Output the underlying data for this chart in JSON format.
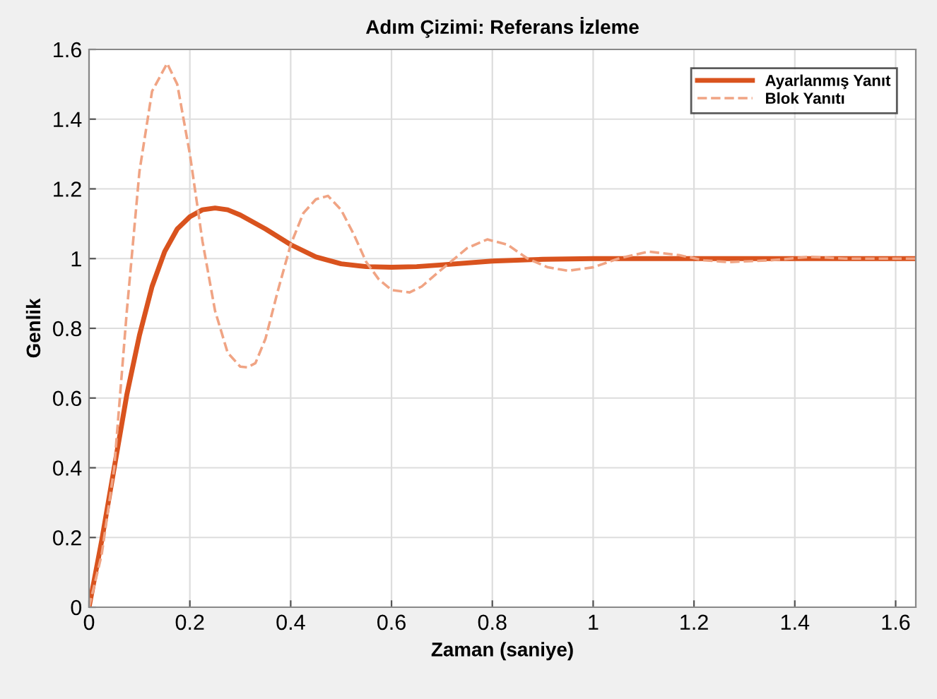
{
  "chart_data": {
    "type": "line",
    "title": "Adım Çizimi: Referans İzleme",
    "xlabel": "Zaman (saniye)",
    "ylabel": "Genlik",
    "xlim": [
      0,
      1.64
    ],
    "ylim": [
      0,
      1.6
    ],
    "xticks": [
      0,
      0.2,
      0.4,
      0.6,
      0.8,
      1,
      1.2,
      1.4,
      1.6
    ],
    "yticks": [
      0,
      0.2,
      0.4,
      0.6,
      0.8,
      1,
      1.2,
      1.4,
      1.6
    ],
    "grid": true,
    "legend": "top right",
    "series": [
      {
        "name": "Ayarlanmış Yanıt",
        "color": "#d9531e",
        "line_style": "solid",
        "x": [
          0,
          0.025,
          0.05,
          0.075,
          0.1,
          0.125,
          0.15,
          0.175,
          0.2,
          0.225,
          0.25,
          0.275,
          0.3,
          0.35,
          0.4,
          0.45,
          0.5,
          0.55,
          0.6,
          0.65,
          0.7,
          0.8,
          0.9,
          1.0,
          1.2,
          1.4,
          1.64
        ],
        "values": [
          0,
          0.19,
          0.4,
          0.61,
          0.78,
          0.92,
          1.02,
          1.085,
          1.12,
          1.14,
          1.145,
          1.14,
          1.125,
          1.085,
          1.04,
          1.005,
          0.985,
          0.977,
          0.975,
          0.977,
          0.982,
          0.993,
          0.998,
          1,
          1,
          1,
          1
        ]
      },
      {
        "name": "Blok Yanıtı",
        "color": "#f0a484",
        "line_style": "dashed",
        "x": [
          0,
          0.025,
          0.05,
          0.075,
          0.1,
          0.125,
          0.155,
          0.175,
          0.2,
          0.225,
          0.25,
          0.275,
          0.3,
          0.314,
          0.33,
          0.35,
          0.375,
          0.4,
          0.425,
          0.45,
          0.474,
          0.5,
          0.525,
          0.55,
          0.575,
          0.6,
          0.636,
          0.66,
          0.7,
          0.75,
          0.79,
          0.83,
          0.87,
          0.91,
          0.95,
          1.0,
          1.05,
          1.11,
          1.17,
          1.22,
          1.27,
          1.35,
          1.43,
          1.5,
          1.64
        ],
        "values": [
          0,
          0.15,
          0.4,
          0.85,
          1.25,
          1.48,
          1.56,
          1.5,
          1.3,
          1.05,
          0.85,
          0.73,
          0.69,
          0.688,
          0.7,
          0.77,
          0.91,
          1.04,
          1.13,
          1.17,
          1.18,
          1.14,
          1.07,
          0.99,
          0.94,
          0.91,
          0.903,
          0.92,
          0.97,
          1.03,
          1.055,
          1.04,
          1.0,
          0.975,
          0.965,
          0.975,
          1.0,
          1.02,
          1.01,
          0.995,
          0.99,
          0.995,
          1.005,
          1.0,
          1.0
        ]
      }
    ]
  }
}
